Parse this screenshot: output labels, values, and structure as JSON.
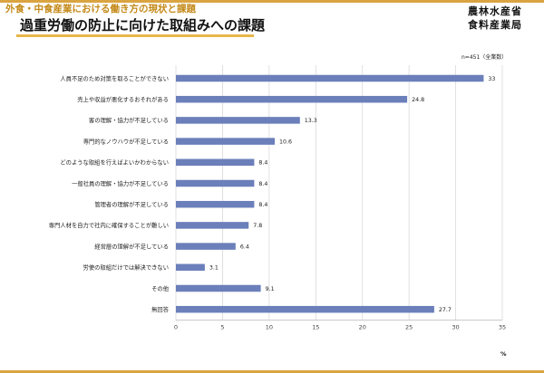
{
  "header": {
    "supertitle": "外食・中食産業における働き方の現状と課題",
    "title": "過重労働の防止に向けた取組みへの課題",
    "agency_line1": "農林水産省",
    "agency_line2": "食料産業局",
    "sample_note": "n=451（全業数）"
  },
  "chart_data": {
    "type": "bar",
    "orientation": "horizontal",
    "categories": [
      "人員不足のため対策を取ることができない",
      "売上や収益が悪化するおそれがある",
      "客の理解・協力が不足している",
      "専門的なノウハウが不足している",
      "どのような取組を行えばよいかわからない",
      "一般社員の理解・協力が不足している",
      "管理者の理解が不足している",
      "専門人材を自力で社内に確保することが難しい",
      "経営層の理解が不足している",
      "労使の取組だけでは解決できない",
      "その他",
      "無回答"
    ],
    "values": [
      33,
      24.8,
      13.3,
      10.6,
      8.4,
      8.4,
      8.4,
      7.8,
      6.4,
      3.1,
      9.1,
      27.7
    ],
    "value_labels": [
      "33",
      "24.8",
      "13.3",
      "10.6",
      "8.4",
      "8.4",
      "8.4",
      "7.8",
      "6.4",
      "3.1",
      "9.1",
      "27.7"
    ],
    "xlim": [
      0,
      35
    ],
    "xticks": [
      "0",
      "5",
      "10",
      "15",
      "20",
      "25",
      "30",
      "35"
    ],
    "xlabel": "%",
    "grid": true,
    "bar_color": "#6b7fba"
  }
}
